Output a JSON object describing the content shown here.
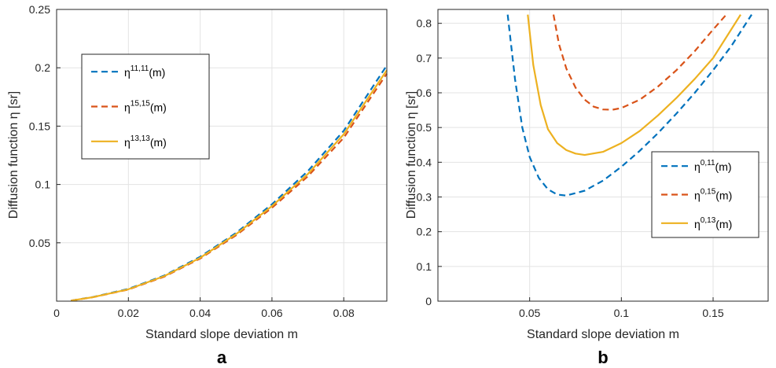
{
  "chart_data": [
    {
      "panel": "a",
      "type": "line",
      "xlabel": "Standard slope deviation m",
      "ylabel": "Diffusion function η [sr]",
      "xlim": [
        0,
        0.092
      ],
      "ylim": [
        0,
        0.25
      ],
      "xticks": [
        0,
        0.02,
        0.04,
        0.06,
        0.08
      ],
      "xtick_labels": [
        "0",
        "0.02",
        "0.04",
        "0.06",
        "0.08"
      ],
      "yticks": [
        0.05,
        0.1,
        0.15,
        0.2,
        0.25
      ],
      "ytick_labels": [
        "0.05",
        "0.1",
        "0.15",
        "0.2",
        "0.25"
      ],
      "grid": true,
      "legend_position": "top-left",
      "series": [
        {
          "name": "η11,11(m)",
          "legend_base": "η",
          "legend_sup": "11,11",
          "legend_tail": "(m)",
          "color": "#0072BD",
          "dash": "dashed",
          "x": [
            0.004,
            0.01,
            0.02,
            0.03,
            0.04,
            0.05,
            0.06,
            0.07,
            0.08,
            0.092
          ],
          "y": [
            0.0005,
            0.0035,
            0.0105,
            0.022,
            0.038,
            0.0585,
            0.083,
            0.1115,
            0.146,
            0.202
          ]
        },
        {
          "name": "η15,15(m)",
          "legend_base": "η",
          "legend_sup": "15,15",
          "legend_tail": "(m)",
          "color": "#D95319",
          "dash": "dashed",
          "x": [
            0.004,
            0.01,
            0.02,
            0.03,
            0.04,
            0.05,
            0.06,
            0.07,
            0.08,
            0.092
          ],
          "y": [
            0.0005,
            0.0033,
            0.01,
            0.021,
            0.0365,
            0.0565,
            0.08,
            0.107,
            0.14,
            0.195
          ]
        },
        {
          "name": "η13,13(m)",
          "legend_base": "η",
          "legend_sup": "13,13",
          "legend_tail": "(m)",
          "color": "#EDB120",
          "dash": "solid",
          "x": [
            0.004,
            0.01,
            0.02,
            0.03,
            0.04,
            0.05,
            0.06,
            0.07,
            0.08,
            0.092
          ],
          "y": [
            0.0005,
            0.0034,
            0.0102,
            0.0215,
            0.0372,
            0.0575,
            0.0815,
            0.109,
            0.143,
            0.198
          ]
        }
      ]
    },
    {
      "panel": "b",
      "type": "line",
      "xlabel": "Standard slope deviation m",
      "ylabel": "Diffusion function η [sr]",
      "xlim": [
        0,
        0.18
      ],
      "ylim": [
        0,
        0.84
      ],
      "xticks": [
        0.05,
        0.1,
        0.15
      ],
      "xtick_labels": [
        "0.05",
        "0.1",
        "0.15"
      ],
      "yticks": [
        0,
        0.1,
        0.2,
        0.3,
        0.4,
        0.5,
        0.6,
        0.7,
        0.8
      ],
      "ytick_labels": [
        "0",
        "0.1",
        "0.2",
        "0.3",
        "0.4",
        "0.5",
        "0.6",
        "0.7",
        "0.8"
      ],
      "grid": true,
      "legend_position": "right",
      "series": [
        {
          "name": "η0,11(m)",
          "legend_base": "η",
          "legend_sup": "0,11",
          "legend_tail": "(m)",
          "color": "#0072BD",
          "dash": "dashed",
          "x": [
            0.038,
            0.042,
            0.046,
            0.05,
            0.055,
            0.06,
            0.065,
            0.07,
            0.08,
            0.09,
            0.1,
            0.11,
            0.12,
            0.13,
            0.14,
            0.15,
            0.16,
            0.171
          ],
          "y": [
            0.825,
            0.64,
            0.5,
            0.415,
            0.355,
            0.322,
            0.307,
            0.304,
            0.318,
            0.347,
            0.387,
            0.433,
            0.484,
            0.54,
            0.6,
            0.665,
            0.735,
            0.825
          ]
        },
        {
          "name": "η0,15(m)",
          "legend_base": "η",
          "legend_sup": "0,15",
          "legend_tail": "(m)",
          "color": "#D95319",
          "dash": "dashed",
          "x": [
            0.063,
            0.066,
            0.07,
            0.075,
            0.08,
            0.085,
            0.09,
            0.095,
            0.1,
            0.11,
            0.12,
            0.13,
            0.14,
            0.15,
            0.158
          ],
          "y": [
            0.825,
            0.74,
            0.67,
            0.615,
            0.58,
            0.56,
            0.552,
            0.551,
            0.556,
            0.58,
            0.618,
            0.665,
            0.72,
            0.782,
            0.83
          ]
        },
        {
          "name": "η0,13(m)",
          "legend_base": "η",
          "legend_sup": "0,13",
          "legend_tail": "(m)",
          "color": "#EDB120",
          "dash": "solid",
          "x": [
            0.049,
            0.052,
            0.056,
            0.06,
            0.065,
            0.07,
            0.075,
            0.08,
            0.09,
            0.1,
            0.11,
            0.12,
            0.13,
            0.14,
            0.15,
            0.165
          ],
          "y": [
            0.825,
            0.68,
            0.565,
            0.495,
            0.455,
            0.435,
            0.425,
            0.421,
            0.43,
            0.455,
            0.49,
            0.535,
            0.585,
            0.64,
            0.7,
            0.825
          ]
        }
      ]
    }
  ],
  "panel_labels": [
    "a",
    "b"
  ]
}
